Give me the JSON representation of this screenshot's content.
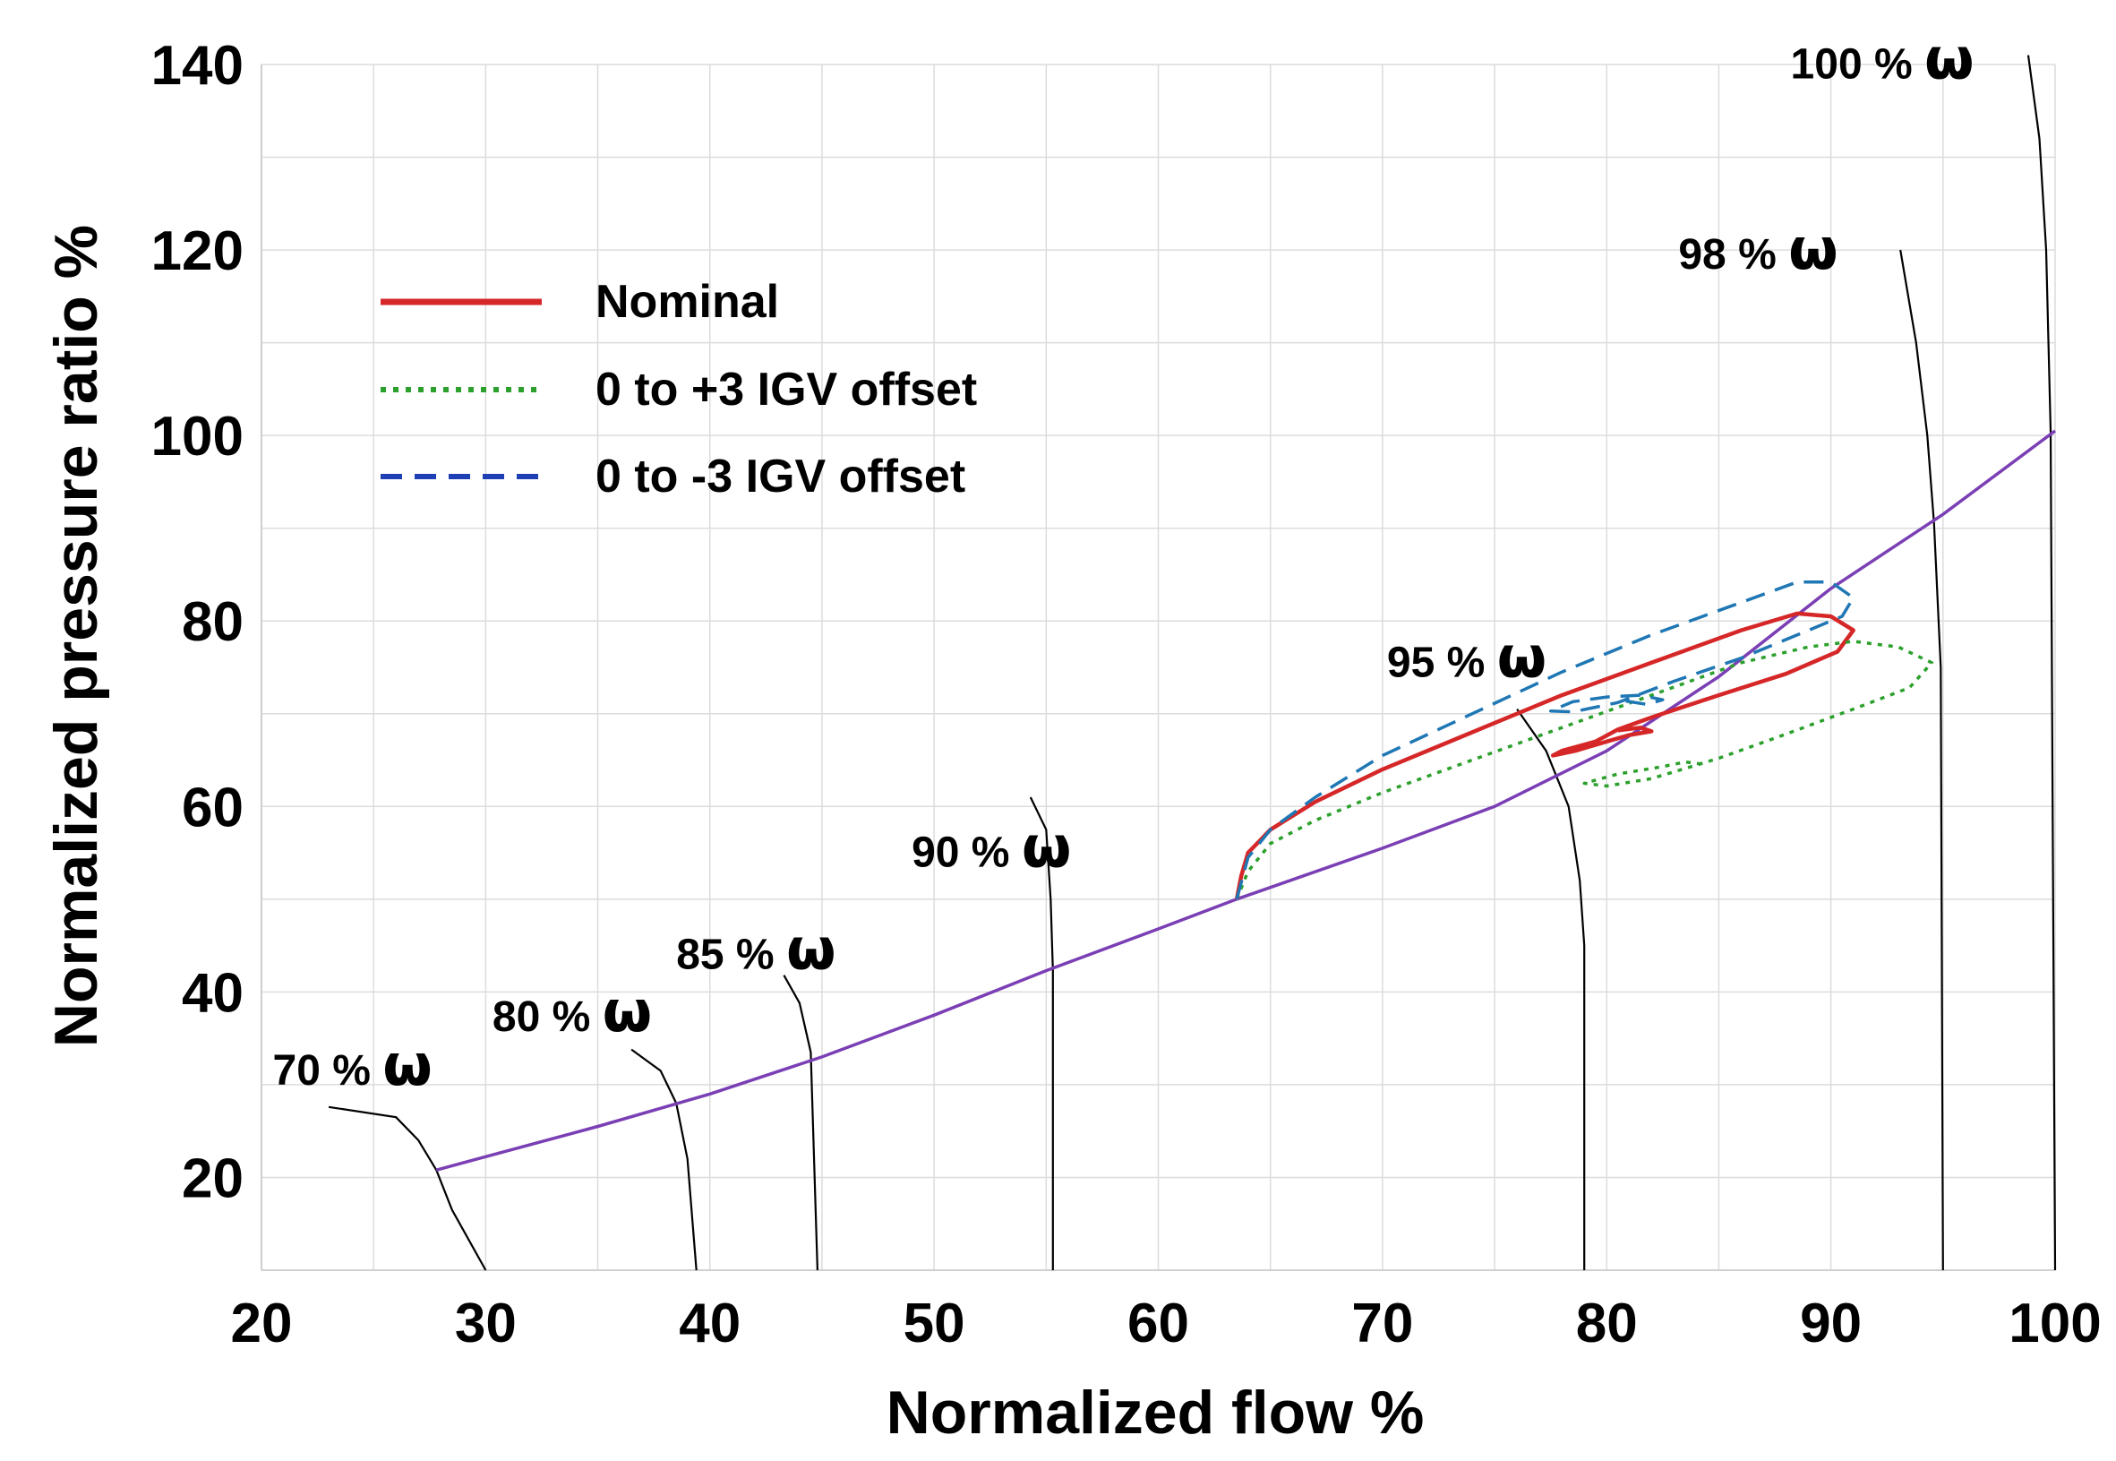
{
  "chart_data": {
    "type": "line",
    "title": "",
    "xlabel": "Normalized flow %",
    "ylabel": "Normalized pressure ratio %",
    "xlim": [
      20,
      100
    ],
    "ylim": [
      10,
      140
    ],
    "xticks": [
      "20",
      "30",
      "40",
      "50",
      "60",
      "70",
      "80",
      "90",
      "100"
    ],
    "yticks": [
      "20",
      "40",
      "60",
      "80",
      "100",
      "120",
      "140"
    ],
    "grid": true,
    "legend_position": "top-left",
    "legend": [
      {
        "label": "Nominal",
        "color": "#d62728",
        "style": "solid"
      },
      {
        "label": "0 to +3 IGV offset",
        "color": "#2ca02c",
        "style": "dotted"
      },
      {
        "label": "0 to -3 IGV offset",
        "color": "#1f77b4",
        "style": "dashed"
      }
    ],
    "surge_line": {
      "color": "#7b3fb5",
      "points": [
        [
          27.8,
          20.8
        ],
        [
          35,
          25.5
        ],
        [
          40,
          29
        ],
        [
          45,
          33
        ],
        [
          50,
          37.5
        ],
        [
          55,
          42.3
        ],
        [
          60,
          46.8
        ],
        [
          63.5,
          50
        ],
        [
          70,
          55.5
        ],
        [
          75,
          60
        ],
        [
          80,
          66
        ],
        [
          85,
          74
        ],
        [
          90,
          83.5
        ],
        [
          95,
          91.5
        ],
        [
          100,
          100.5
        ]
      ]
    },
    "speed_lines": [
      {
        "label": "70 % ",
        "symbol": "ω",
        "label_at": [
          20.5,
          30
        ],
        "points": [
          [
            23,
            27.6
          ],
          [
            26,
            26.5
          ],
          [
            27,
            24
          ],
          [
            27.8,
            20.8
          ],
          [
            28.5,
            16.5
          ],
          [
            30,
            10
          ]
        ]
      },
      {
        "label": "80 % ",
        "symbol": "ω",
        "label_at": [
          30.3,
          35.8
        ],
        "points": [
          [
            36.5,
            33.8
          ],
          [
            37.8,
            31.5
          ],
          [
            38.5,
            28
          ],
          [
            39,
            22
          ],
          [
            39.4,
            10
          ]
        ]
      },
      {
        "label": "85 % ",
        "symbol": "ω",
        "label_at": [
          38.5,
          42.5
        ],
        "points": [
          [
            43.3,
            41.8
          ],
          [
            44,
            38.8
          ],
          [
            44.5,
            33.5
          ],
          [
            44.8,
            10
          ]
        ]
      },
      {
        "label": "90 % ",
        "symbol": "ω",
        "label_at": [
          49,
          53.5
        ],
        "points": [
          [
            54.3,
            61
          ],
          [
            55,
            57.5
          ],
          [
            55.2,
            50
          ],
          [
            55.3,
            42.3
          ],
          [
            55.3,
            10
          ]
        ]
      },
      {
        "label": "95 % ",
        "symbol": "ω",
        "label_at": [
          70.2,
          74
        ],
        "points": [
          [
            76,
            70.5
          ],
          [
            77.3,
            66
          ],
          [
            78.3,
            60
          ],
          [
            78.8,
            52
          ],
          [
            79,
            45
          ],
          [
            79,
            10
          ]
        ]
      },
      {
        "label": "98 % ",
        "symbol": "ω",
        "label_at": [
          83.2,
          118
        ],
        "points": [
          [
            93.1,
            120
          ],
          [
            93.8,
            110
          ],
          [
            94.3,
            100
          ],
          [
            94.6,
            90.5
          ],
          [
            94.9,
            75
          ],
          [
            95,
            10
          ]
        ]
      },
      {
        "label": "100 % ",
        "symbol": "ω",
        "label_at": [
          88.2,
          138.5
        ],
        "points": [
          [
            98.8,
            141
          ],
          [
            99.3,
            132
          ],
          [
            99.6,
            120
          ],
          [
            99.8,
            100.5
          ],
          [
            100,
            10
          ]
        ]
      }
    ],
    "series": [
      {
        "name": "Nominal",
        "color": "#d62728",
        "style": "solid",
        "points": [
          [
            63.5,
            50
          ],
          [
            63.7,
            52.5
          ],
          [
            64,
            55
          ],
          [
            65,
            57.5
          ],
          [
            67,
            60.5
          ],
          [
            70,
            64
          ],
          [
            74,
            68
          ],
          [
            78,
            72
          ],
          [
            82,
            75.5
          ],
          [
            86,
            79
          ],
          [
            88.5,
            80.8
          ],
          [
            90,
            80.5
          ],
          [
            91,
            79
          ],
          [
            90.3,
            76.7
          ],
          [
            88,
            74.3
          ],
          [
            85,
            72
          ],
          [
            82,
            69.6
          ],
          [
            80.5,
            68.3
          ],
          [
            79.5,
            67
          ],
          [
            78,
            66
          ],
          [
            77.6,
            65.5
          ],
          [
            78.6,
            66
          ],
          [
            80,
            67
          ],
          [
            81,
            67.7
          ],
          [
            82,
            68.1
          ],
          [
            81.5,
            68.5
          ],
          [
            80.5,
            68.2
          ]
        ]
      },
      {
        "name": "0 to +3 IGV offset",
        "color": "#2ca02c",
        "style": "dotted",
        "points": [
          [
            63.5,
            50
          ],
          [
            64,
            53
          ],
          [
            65,
            56
          ],
          [
            67,
            58.5
          ],
          [
            70,
            61.5
          ],
          [
            74,
            65
          ],
          [
            78,
            68.5
          ],
          [
            82,
            72
          ],
          [
            86,
            75.5
          ],
          [
            89,
            77.2
          ],
          [
            91,
            77.8
          ],
          [
            93,
            77.2
          ],
          [
            94.5,
            75.5
          ],
          [
            93.5,
            72.8
          ],
          [
            91,
            70.5
          ],
          [
            88,
            67.8
          ],
          [
            85,
            65.2
          ],
          [
            82,
            63
          ],
          [
            80,
            62.2
          ],
          [
            79,
            62.5
          ],
          [
            80.5,
            63.5
          ],
          [
            82.5,
            64.3
          ],
          [
            83.5,
            64.8
          ],
          [
            84.5,
            64.5
          ]
        ]
      },
      {
        "name": "0 to -3 IGV offset",
        "color": "#1f77b4",
        "style": "dashed",
        "points": [
          [
            63.5,
            50
          ],
          [
            64,
            54.5
          ],
          [
            65,
            57.5
          ],
          [
            67,
            61
          ],
          [
            70,
            65.5
          ],
          [
            74,
            70
          ],
          [
            78,
            74.5
          ],
          [
            82,
            78.5
          ],
          [
            86,
            82
          ],
          [
            88.5,
            84.2
          ],
          [
            90,
            84.2
          ],
          [
            91,
            82.5
          ],
          [
            90.5,
            80.5
          ],
          [
            88.5,
            78.5
          ],
          [
            86,
            76
          ],
          [
            83,
            73.5
          ],
          [
            80.5,
            71.2
          ],
          [
            78.5,
            70.2
          ],
          [
            77.5,
            70.3
          ],
          [
            78.5,
            71.3
          ],
          [
            80,
            71.8
          ],
          [
            81.5,
            72
          ],
          [
            82.5,
            71.5
          ],
          [
            81.8,
            71
          ],
          [
            80.5,
            71.5
          ]
        ]
      }
    ]
  }
}
